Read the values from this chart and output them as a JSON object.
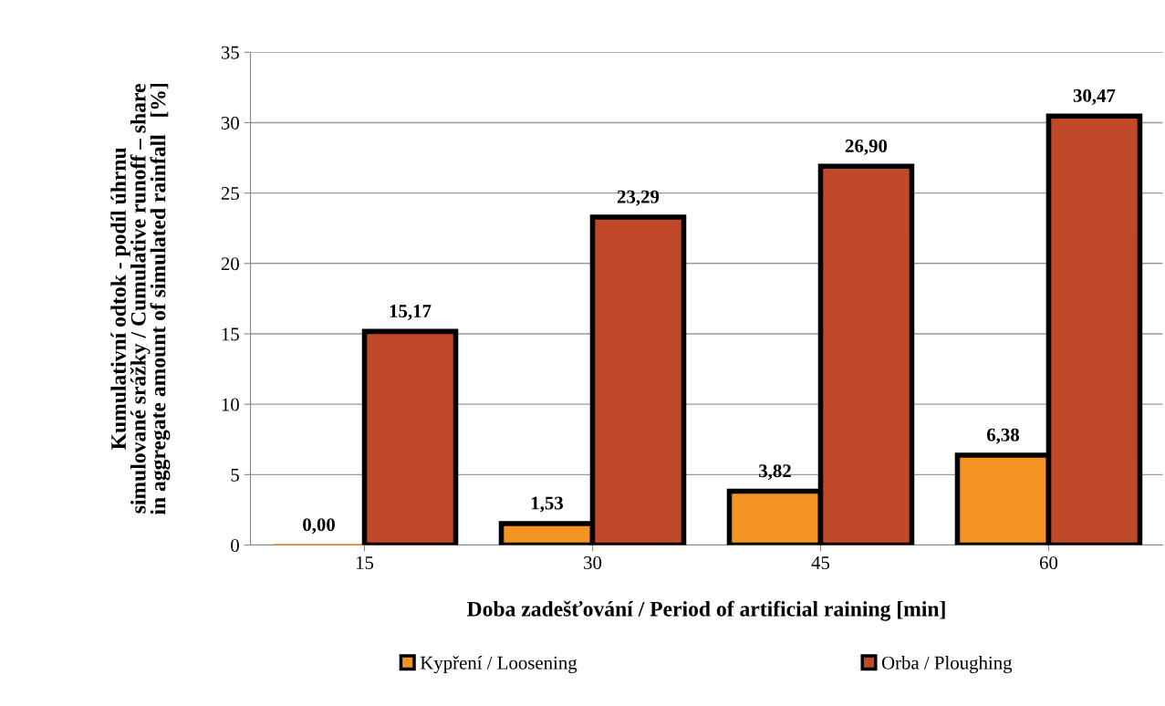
{
  "chart_data": {
    "type": "bar",
    "xlabel": "Doba zadešťování / Period of artificial raining [min]",
    "ylabel": "Kumulativní odtok - podíl úhrnu\nsimulované srážky / Cumulative runoff – share\nin aggregate amount of simulated rainfall   [%]",
    "categories": [
      "15",
      "30",
      "45",
      "60"
    ],
    "series": [
      {
        "name": "Kypření / Loosening",
        "color": "#f39322",
        "values": [
          0.0,
          1.53,
          3.82,
          6.38
        ],
        "value_labels": [
          "0,00",
          "1,53",
          "3,82",
          "6,38"
        ]
      },
      {
        "name": "Orba / Ploughing",
        "color": "#c0492a",
        "values": [
          15.17,
          23.29,
          26.9,
          30.47
        ],
        "value_labels": [
          "15,17",
          "23,29",
          "26,90",
          "30,47"
        ]
      }
    ],
    "ylim": [
      0,
      35
    ],
    "yticks": [
      0,
      5,
      10,
      15,
      20,
      25,
      30,
      35
    ],
    "grid": "y",
    "legend": "bottom"
  }
}
